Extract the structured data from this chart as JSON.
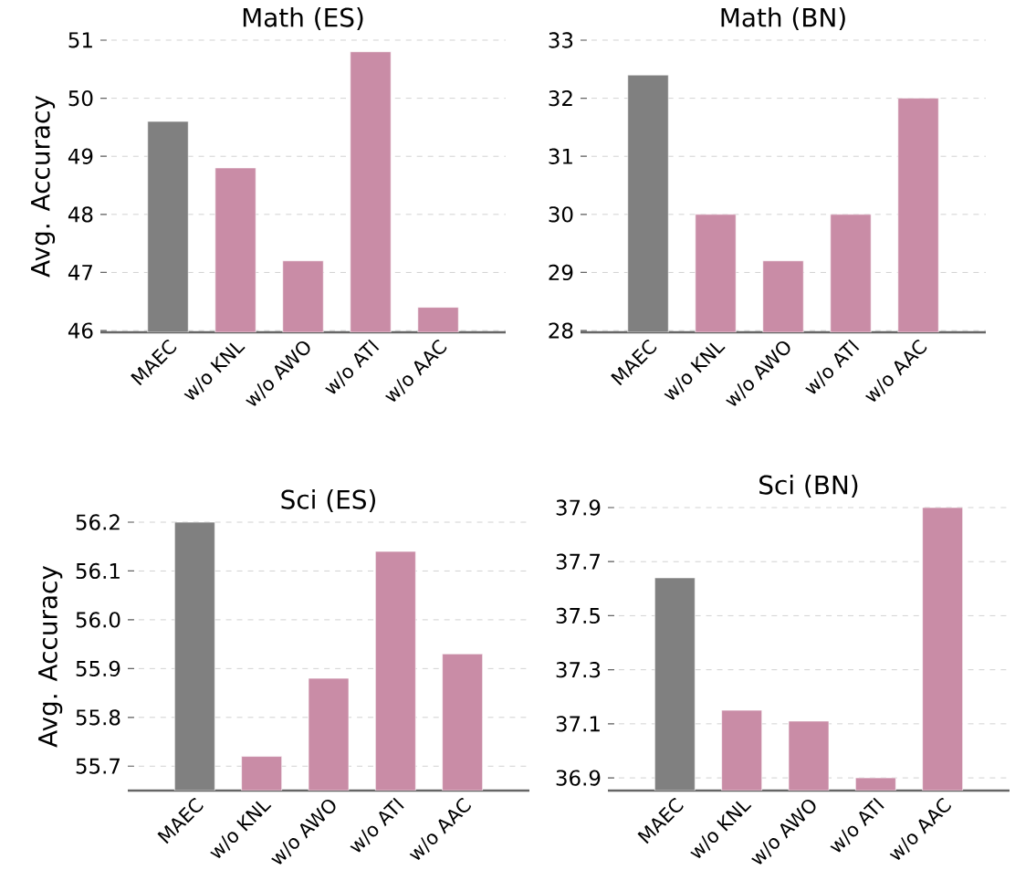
{
  "chart_data": [
    {
      "type": "bar",
      "title": "Math (ES)",
      "ylabel": "Avg. Accuracy",
      "categories": [
        "MAEC",
        "w/o KNL",
        "w/o AWO",
        "w/o ATI",
        "w/o AAC"
      ],
      "values": [
        49.6,
        48.8,
        47.2,
        50.8,
        46.4
      ],
      "colors": [
        "#808080",
        "#c98ca6",
        "#c98ca6",
        "#c98ca6",
        "#c98ca6"
      ],
      "ylim": [
        45.97,
        51
      ],
      "yticks": [
        46,
        47,
        48,
        49,
        50,
        51
      ],
      "grid": "y"
    },
    {
      "type": "bar",
      "title": "Math (BN)",
      "categories": [
        "MAEC",
        "w/o KNL",
        "w/o AWO",
        "w/o ATI",
        "w/o AAC"
      ],
      "values": [
        32.4,
        30.0,
        29.2,
        30.0,
        32.0
      ],
      "colors": [
        "#808080",
        "#c98ca6",
        "#c98ca6",
        "#c98ca6",
        "#c98ca6"
      ],
      "ylim": [
        27.97,
        33
      ],
      "yticks": [
        28,
        29,
        30,
        31,
        32,
        33
      ],
      "grid": "y"
    },
    {
      "type": "bar",
      "title": "Sci (ES)",
      "ylabel": "Avg. Accuracy",
      "categories": [
        "MAEC",
        "w/o KNL",
        "w/o AWO",
        "w/o ATI",
        "w/o AAC"
      ],
      "values": [
        56.2,
        55.72,
        55.88,
        56.14,
        55.93
      ],
      "colors": [
        "#808080",
        "#c98ca6",
        "#c98ca6",
        "#c98ca6",
        "#c98ca6"
      ],
      "ylim": [
        55.65,
        56.2
      ],
      "yticks": [
        55.7,
        55.8,
        55.9,
        {
          "value": 56.0,
          "label": "56.0"
        },
        56.1,
        56.2
      ],
      "grid": "y"
    },
    {
      "type": "bar",
      "title": "Sci (BN)",
      "categories": [
        "MAEC",
        "w/o KNL",
        "w/o AWO",
        "w/o ATI",
        "w/o AAC"
      ],
      "values": [
        37.64,
        37.15,
        37.11,
        36.9,
        37.9
      ],
      "colors": [
        "#808080",
        "#c98ca6",
        "#c98ca6",
        "#c98ca6",
        "#c98ca6"
      ],
      "ylim": [
        36.853,
        37.9
      ],
      "yticks": [
        36.9,
        37.1,
        37.3,
        37.5,
        37.7,
        37.9
      ],
      "grid": "y"
    }
  ]
}
